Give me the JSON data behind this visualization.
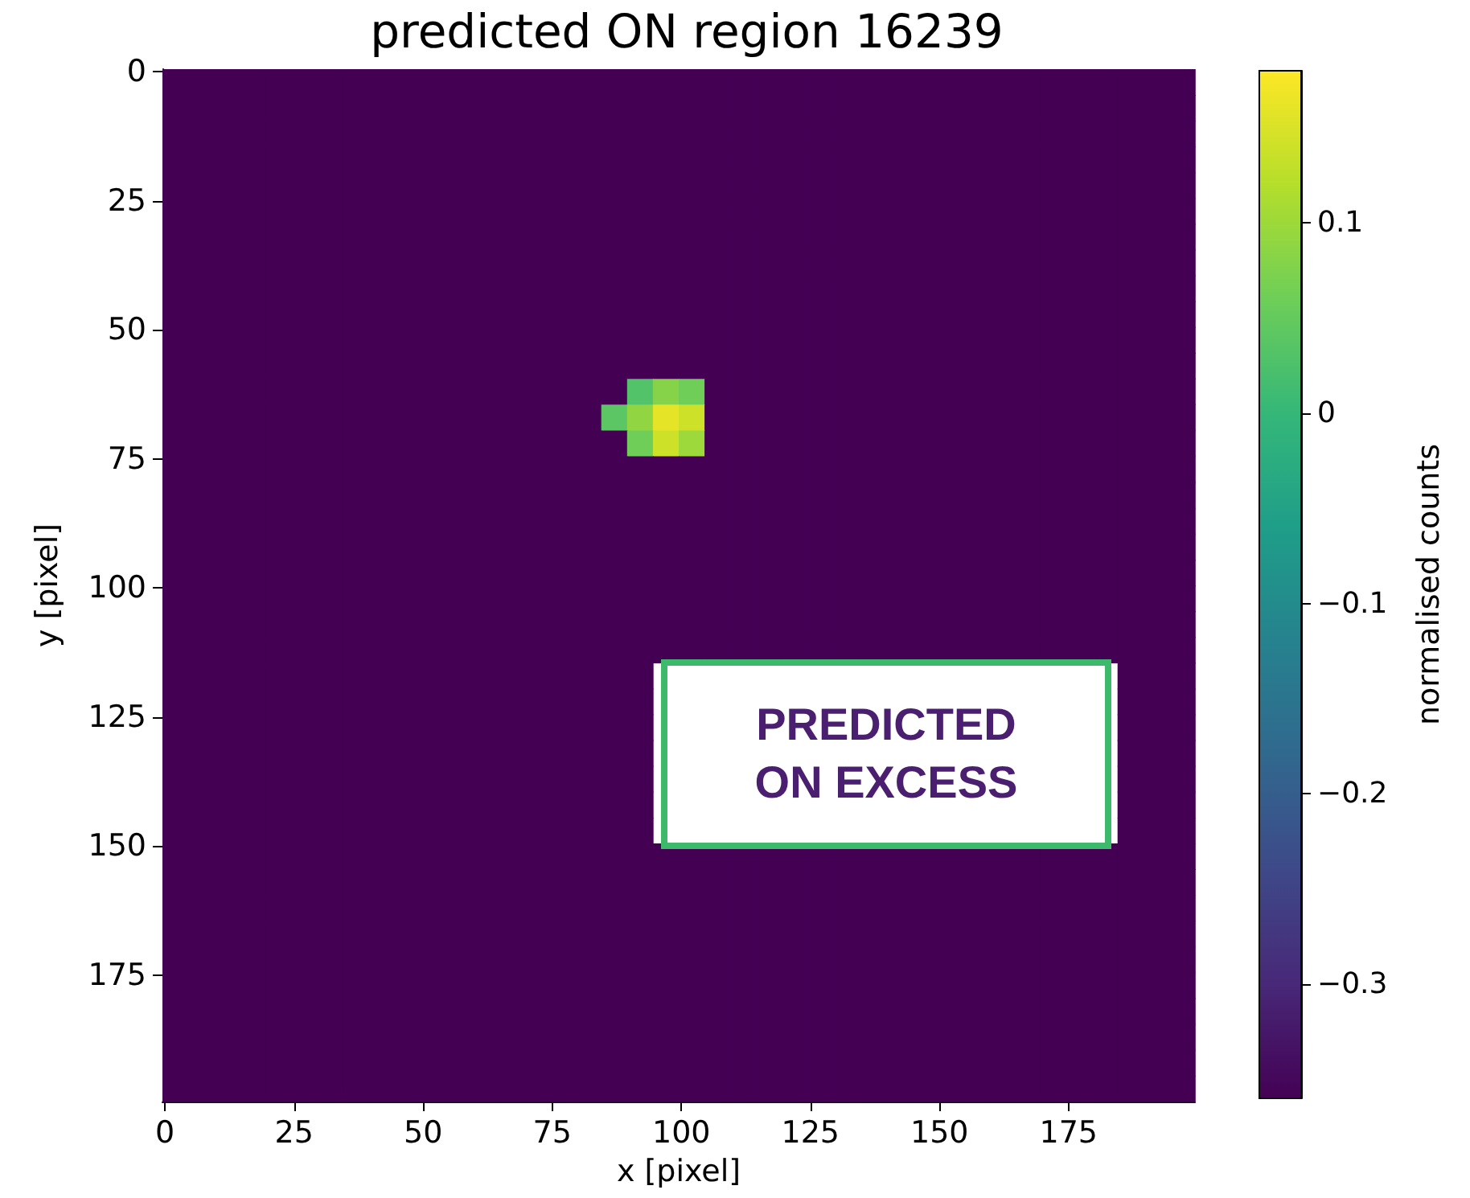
{
  "chart_data": {
    "type": "heatmap",
    "title": "predicted ON region 16239",
    "xlabel": "x [pixel]",
    "ylabel": "y [pixel]",
    "clabel": "normalised counts",
    "xlim": [
      -0.5,
      199.5
    ],
    "ylim": [
      199.5,
      -0.5
    ],
    "xticks": [
      0,
      25,
      50,
      75,
      100,
      125,
      150,
      175
    ],
    "yticks": [
      0,
      25,
      50,
      75,
      100,
      125,
      150,
      175
    ],
    "clim": [
      -0.36,
      0.18
    ],
    "cticks": [
      -0.3,
      -0.2,
      -0.1,
      0.0,
      0.1
    ],
    "annotations": [
      "PREDICTED ON EXCESS"
    ],
    "cells": [
      [
        -0.36,
        -0.36,
        -0.36,
        -0.36,
        -0.36,
        -0.36,
        -0.36,
        -0.36,
        -0.36,
        -0.36,
        -0.36,
        -0.36,
        -0.36,
        -0.36,
        -0.36,
        -0.36,
        -0.36,
        -0.36,
        -0.36,
        -0.36,
        -0.36,
        -0.36,
        -0.36,
        -0.36,
        -0.36,
        -0.36,
        -0.36,
        -0.36,
        -0.36,
        -0.36,
        -0.36,
        -0.36,
        -0.36,
        -0.36,
        -0.36,
        -0.36,
        -0.36,
        -0.36,
        -0.36,
        -0.36
      ],
      [
        -0.36,
        -0.36,
        -0.36,
        -0.36,
        -0.36,
        -0.36,
        -0.36,
        -0.36,
        -0.36,
        -0.36,
        -0.36,
        -0.36,
        -0.36,
        -0.36,
        -0.36,
        -0.36,
        -0.36,
        -0.36,
        -0.36,
        -0.36,
        -0.36,
        -0.36,
        -0.36,
        -0.36,
        -0.36,
        -0.36,
        -0.36,
        -0.36,
        -0.36,
        -0.36,
        -0.36,
        -0.36,
        -0.36,
        -0.36,
        -0.36,
        -0.36,
        -0.36,
        -0.36,
        -0.36,
        -0.36
      ],
      [
        -0.36,
        -0.36,
        -0.36,
        -0.36,
        -0.36,
        -0.36,
        -0.36,
        -0.36,
        -0.36,
        -0.36,
        -0.36,
        -0.36,
        -0.36,
        -0.36,
        -0.36,
        -0.36,
        -0.36,
        -0.36,
        -0.36,
        -0.36,
        -0.36,
        -0.36,
        -0.36,
        -0.36,
        -0.36,
        -0.36,
        -0.36,
        -0.36,
        -0.36,
        -0.36,
        -0.36,
        -0.36,
        -0.36,
        -0.36,
        -0.36,
        -0.36,
        -0.36,
        -0.36,
        -0.36,
        -0.36
      ],
      [
        -0.36,
        -0.36,
        -0.36,
        -0.36,
        -0.36,
        -0.36,
        -0.36,
        -0.36,
        -0.36,
        -0.36,
        -0.36,
        -0.36,
        -0.36,
        -0.36,
        -0.36,
        -0.36,
        -0.36,
        -0.36,
        -0.36,
        -0.36,
        -0.36,
        -0.36,
        -0.36,
        -0.36,
        -0.36,
        -0.36,
        -0.36,
        -0.36,
        -0.36,
        -0.36,
        -0.36,
        -0.36,
        -0.36,
        -0.36,
        -0.36,
        -0.36,
        -0.36,
        -0.36,
        -0.36,
        -0.36
      ],
      [
        -0.36,
        -0.36,
        -0.36,
        -0.36,
        -0.36,
        -0.36,
        -0.36,
        -0.36,
        -0.36,
        -0.36,
        -0.36,
        -0.36,
        -0.36,
        -0.36,
        -0.36,
        -0.36,
        -0.36,
        -0.36,
        -0.36,
        -0.36,
        -0.36,
        -0.36,
        -0.36,
        -0.36,
        -0.36,
        -0.36,
        -0.36,
        -0.36,
        -0.36,
        -0.36,
        -0.36,
        -0.36,
        -0.36,
        -0.36,
        -0.36,
        -0.36,
        -0.36,
        -0.36,
        -0.36,
        -0.36
      ],
      [
        -0.36,
        -0.36,
        -0.36,
        -0.36,
        -0.36,
        -0.36,
        -0.36,
        -0.36,
        -0.36,
        -0.36,
        -0.36,
        -0.36,
        -0.36,
        -0.36,
        -0.36,
        -0.36,
        -0.36,
        -0.36,
        -0.36,
        -0.36,
        -0.36,
        -0.36,
        -0.36,
        -0.36,
        -0.36,
        -0.36,
        -0.36,
        -0.36,
        -0.36,
        -0.36,
        -0.36,
        -0.36,
        -0.36,
        -0.36,
        -0.36,
        -0.36,
        -0.36,
        -0.36,
        -0.36,
        -0.36
      ],
      [
        -0.36,
        -0.36,
        -0.36,
        -0.36,
        -0.36,
        -0.36,
        -0.36,
        -0.36,
        -0.36,
        -0.36,
        -0.36,
        -0.36,
        -0.36,
        -0.36,
        -0.36,
        -0.36,
        -0.36,
        -0.36,
        -0.36,
        -0.36,
        -0.36,
        -0.36,
        -0.36,
        -0.36,
        -0.36,
        -0.36,
        -0.36,
        -0.36,
        -0.36,
        -0.36,
        -0.36,
        -0.36,
        -0.36,
        -0.36,
        -0.36,
        -0.36,
        -0.36,
        -0.36,
        -0.36,
        -0.36
      ],
      [
        -0.36,
        -0.36,
        -0.36,
        -0.36,
        -0.36,
        -0.36,
        -0.36,
        -0.36,
        -0.36,
        -0.36,
        -0.36,
        -0.36,
        -0.36,
        -0.36,
        -0.36,
        -0.36,
        -0.36,
        -0.36,
        -0.36,
        -0.36,
        -0.36,
        -0.36,
        -0.36,
        -0.36,
        -0.36,
        -0.36,
        -0.36,
        -0.36,
        -0.36,
        -0.36,
        -0.36,
        -0.36,
        -0.36,
        -0.36,
        -0.36,
        -0.36,
        -0.36,
        -0.36,
        -0.36,
        -0.36
      ],
      [
        -0.36,
        -0.36,
        -0.36,
        -0.36,
        -0.36,
        -0.36,
        -0.36,
        -0.36,
        -0.36,
        -0.36,
        -0.36,
        -0.36,
        -0.36,
        -0.36,
        -0.36,
        -0.36,
        -0.36,
        -0.36,
        -0.36,
        -0.36,
        -0.36,
        -0.36,
        -0.36,
        -0.36,
        -0.36,
        -0.36,
        -0.36,
        -0.36,
        -0.36,
        -0.36,
        -0.36,
        -0.36,
        -0.36,
        -0.36,
        -0.36,
        -0.36,
        -0.36,
        -0.36,
        -0.36,
        -0.36
      ],
      [
        -0.36,
        -0.36,
        -0.36,
        -0.36,
        -0.36,
        -0.36,
        -0.36,
        -0.36,
        -0.36,
        -0.36,
        -0.36,
        -0.36,
        -0.36,
        -0.36,
        -0.36,
        -0.36,
        -0.36,
        -0.36,
        -0.36,
        -0.36,
        -0.36,
        -0.36,
        -0.36,
        -0.36,
        -0.36,
        -0.36,
        -0.36,
        -0.36,
        -0.36,
        -0.36,
        -0.36,
        -0.36,
        -0.36,
        -0.36,
        -0.36,
        -0.36,
        -0.36,
        -0.36,
        -0.36,
        -0.36
      ],
      [
        -0.36,
        -0.36,
        -0.36,
        -0.36,
        -0.36,
        -0.36,
        -0.36,
        -0.36,
        -0.36,
        -0.36,
        -0.36,
        -0.36,
        -0.36,
        -0.36,
        -0.36,
        -0.36,
        -0.36,
        -0.36,
        -0.36,
        -0.36,
        -0.36,
        -0.36,
        -0.36,
        -0.36,
        -0.36,
        -0.36,
        -0.36,
        -0.36,
        -0.36,
        -0.36,
        -0.36,
        -0.36,
        -0.36,
        -0.36,
        -0.36,
        -0.36,
        -0.36,
        -0.36,
        -0.36,
        -0.36
      ],
      [
        -0.36,
        -0.36,
        -0.36,
        -0.36,
        -0.36,
        -0.36,
        -0.36,
        -0.36,
        -0.36,
        -0.36,
        -0.36,
        -0.36,
        -0.36,
        -0.36,
        -0.36,
        -0.36,
        -0.36,
        -0.36,
        -0.36,
        -0.36,
        -0.36,
        -0.36,
        -0.36,
        -0.36,
        -0.36,
        -0.36,
        -0.36,
        -0.36,
        -0.36,
        -0.36,
        -0.36,
        -0.36,
        -0.36,
        -0.36,
        -0.36,
        -0.36,
        -0.36,
        -0.36,
        -0.36,
        -0.36
      ],
      [
        -0.36,
        -0.36,
        -0.36,
        -0.36,
        -0.36,
        -0.36,
        -0.36,
        -0.36,
        -0.36,
        -0.36,
        -0.36,
        -0.36,
        -0.36,
        -0.36,
        -0.36,
        -0.36,
        -0.36,
        -0.36,
        0.03,
        0.08,
        0.06,
        -0.36,
        -0.36,
        -0.36,
        -0.36,
        -0.36,
        -0.36,
        -0.36,
        -0.36,
        -0.36,
        -0.36,
        -0.36,
        -0.36,
        -0.36,
        -0.36,
        -0.36,
        -0.36,
        -0.36,
        -0.36,
        -0.36
      ],
      [
        -0.36,
        -0.36,
        -0.36,
        -0.36,
        -0.36,
        -0.36,
        -0.36,
        -0.36,
        -0.36,
        -0.36,
        -0.36,
        -0.36,
        -0.36,
        -0.36,
        -0.36,
        -0.36,
        -0.36,
        0.04,
        0.09,
        0.16,
        0.14,
        -0.36,
        -0.36,
        -0.36,
        -0.36,
        -0.36,
        -0.36,
        -0.36,
        -0.36,
        -0.36,
        -0.36,
        -0.36,
        -0.36,
        -0.36,
        -0.36,
        -0.36,
        -0.36,
        -0.36,
        -0.36,
        -0.36
      ],
      [
        -0.36,
        -0.36,
        -0.36,
        -0.36,
        -0.36,
        -0.36,
        -0.36,
        -0.36,
        -0.36,
        -0.36,
        -0.36,
        -0.36,
        -0.36,
        -0.36,
        -0.36,
        -0.36,
        -0.36,
        -0.36,
        0.06,
        0.14,
        0.1,
        -0.36,
        -0.36,
        -0.36,
        -0.36,
        -0.36,
        -0.36,
        -0.36,
        -0.36,
        -0.36,
        -0.36,
        -0.36,
        -0.36,
        -0.36,
        -0.36,
        -0.36,
        -0.36,
        -0.36,
        -0.36,
        -0.36
      ],
      [
        -0.36,
        -0.36,
        -0.36,
        -0.36,
        -0.36,
        -0.36,
        -0.36,
        -0.36,
        -0.36,
        -0.36,
        -0.36,
        -0.36,
        -0.36,
        -0.36,
        -0.36,
        -0.36,
        -0.36,
        -0.36,
        -0.36,
        -0.36,
        -0.36,
        -0.36,
        -0.36,
        -0.36,
        -0.36,
        -0.36,
        -0.36,
        -0.36,
        -0.36,
        -0.36,
        -0.36,
        -0.36,
        -0.36,
        -0.36,
        -0.36,
        -0.36,
        -0.36,
        -0.36,
        -0.36,
        -0.36
      ],
      [
        -0.36,
        -0.36,
        -0.36,
        -0.36,
        -0.36,
        -0.36,
        -0.36,
        -0.36,
        -0.36,
        -0.36,
        -0.36,
        -0.36,
        -0.36,
        -0.36,
        -0.36,
        -0.36,
        -0.36,
        -0.36,
        -0.36,
        -0.36,
        -0.36,
        -0.36,
        -0.36,
        -0.36,
        -0.36,
        -0.36,
        -0.36,
        -0.36,
        -0.36,
        -0.36,
        -0.36,
        -0.36,
        -0.36,
        -0.36,
        -0.36,
        -0.36,
        -0.36,
        -0.36,
        -0.36,
        -0.36
      ],
      [
        -0.36,
        -0.36,
        -0.36,
        -0.36,
        -0.36,
        -0.36,
        -0.36,
        -0.36,
        -0.36,
        -0.36,
        -0.36,
        -0.36,
        -0.36,
        -0.36,
        -0.36,
        -0.36,
        -0.36,
        -0.36,
        -0.36,
        -0.36,
        -0.36,
        -0.36,
        -0.36,
        -0.36,
        -0.36,
        -0.36,
        -0.36,
        -0.36,
        -0.36,
        -0.36,
        -0.36,
        -0.36,
        -0.36,
        -0.36,
        -0.36,
        -0.36,
        -0.36,
        -0.36,
        -0.36,
        -0.36
      ],
      [
        -0.36,
        -0.36,
        -0.36,
        -0.36,
        -0.36,
        -0.36,
        -0.36,
        -0.36,
        -0.36,
        -0.36,
        -0.36,
        -0.36,
        -0.36,
        -0.36,
        -0.36,
        -0.36,
        -0.36,
        -0.36,
        -0.36,
        -0.36,
        -0.36,
        -0.36,
        -0.36,
        -0.36,
        -0.36,
        -0.36,
        -0.36,
        -0.36,
        -0.36,
        -0.36,
        -0.36,
        -0.36,
        -0.36,
        -0.36,
        -0.36,
        -0.36,
        -0.36,
        -0.36,
        -0.36,
        -0.36
      ],
      [
        -0.36,
        -0.36,
        -0.36,
        -0.36,
        -0.36,
        -0.36,
        -0.36,
        -0.36,
        -0.36,
        -0.36,
        -0.36,
        -0.36,
        -0.36,
        -0.36,
        -0.36,
        -0.36,
        -0.36,
        -0.36,
        -0.36,
        -0.36,
        -0.36,
        -0.36,
        -0.36,
        -0.36,
        -0.36,
        -0.36,
        -0.36,
        -0.36,
        -0.36,
        -0.36,
        -0.36,
        -0.36,
        -0.36,
        -0.36,
        -0.36,
        -0.36,
        -0.36,
        -0.36,
        -0.36,
        -0.36
      ],
      [
        -0.36,
        -0.36,
        -0.36,
        -0.36,
        -0.36,
        -0.36,
        -0.36,
        -0.36,
        -0.36,
        -0.36,
        -0.36,
        -0.36,
        -0.36,
        -0.36,
        -0.36,
        -0.36,
        -0.36,
        -0.36,
        -0.36,
        -0.36,
        -0.36,
        -0.36,
        -0.36,
        -0.36,
        -0.36,
        -0.36,
        -0.36,
        -0.36,
        -0.36,
        -0.36,
        -0.36,
        -0.36,
        -0.36,
        -0.36,
        -0.36,
        -0.36,
        -0.36,
        -0.36,
        -0.36,
        -0.36
      ],
      [
        -0.36,
        -0.36,
        -0.36,
        -0.36,
        -0.36,
        -0.36,
        -0.36,
        -0.36,
        -0.36,
        -0.36,
        -0.36,
        -0.36,
        -0.36,
        -0.36,
        -0.36,
        -0.36,
        -0.36,
        -0.36,
        -0.36,
        -0.36,
        -0.36,
        -0.36,
        -0.36,
        -0.36,
        -0.36,
        -0.36,
        -0.36,
        -0.36,
        -0.36,
        -0.36,
        -0.36,
        -0.36,
        -0.36,
        -0.36,
        -0.36,
        -0.36,
        -0.36,
        -0.36,
        -0.36,
        -0.36
      ],
      [
        -0.36,
        -0.36,
        -0.36,
        -0.36,
        -0.36,
        -0.36,
        -0.36,
        -0.36,
        -0.36,
        -0.36,
        -0.36,
        -0.36,
        -0.36,
        -0.36,
        -0.36,
        -0.36,
        -0.36,
        -0.36,
        -0.36,
        -0.36,
        -0.36,
        -0.36,
        -0.36,
        -0.36,
        -0.36,
        -0.36,
        -0.36,
        -0.36,
        -0.36,
        -0.36,
        -0.36,
        -0.36,
        -0.36,
        -0.36,
        -0.36,
        -0.36,
        -0.36,
        -0.36,
        -0.36,
        -0.36
      ],
      [
        -0.36,
        -0.36,
        -0.36,
        -0.36,
        -0.36,
        -0.36,
        -0.36,
        -0.36,
        -0.36,
        -0.36,
        -0.36,
        -0.36,
        -0.36,
        -0.36,
        -0.36,
        -0.36,
        -0.36,
        -0.36,
        -0.36,
        null,
        null,
        null,
        null,
        null,
        null,
        null,
        null,
        null,
        null,
        null,
        null,
        null,
        null,
        null,
        null,
        null,
        null,
        -0.36,
        -0.36,
        -0.36
      ],
      [
        -0.36,
        -0.36,
        -0.36,
        -0.36,
        -0.36,
        -0.36,
        -0.36,
        -0.36,
        -0.36,
        -0.36,
        -0.36,
        -0.36,
        -0.36,
        -0.36,
        -0.36,
        -0.36,
        -0.36,
        -0.36,
        -0.36,
        null,
        null,
        null,
        null,
        null,
        null,
        null,
        null,
        null,
        null,
        null,
        null,
        null,
        null,
        null,
        null,
        null,
        null,
        -0.36,
        -0.36,
        -0.36
      ],
      [
        -0.36,
        -0.36,
        -0.36,
        -0.36,
        -0.36,
        -0.36,
        -0.36,
        -0.36,
        -0.36,
        -0.36,
        -0.36,
        -0.36,
        -0.36,
        -0.36,
        -0.36,
        -0.36,
        -0.36,
        -0.36,
        -0.36,
        null,
        null,
        null,
        null,
        null,
        null,
        null,
        null,
        null,
        null,
        null,
        null,
        null,
        null,
        null,
        null,
        null,
        null,
        -0.36,
        -0.36,
        -0.36
      ],
      [
        -0.36,
        -0.36,
        -0.36,
        -0.36,
        -0.36,
        -0.36,
        -0.36,
        -0.36,
        -0.36,
        -0.36,
        -0.36,
        -0.36,
        -0.36,
        -0.36,
        -0.36,
        -0.36,
        -0.36,
        -0.36,
        -0.36,
        null,
        null,
        null,
        null,
        null,
        null,
        null,
        null,
        null,
        null,
        null,
        null,
        null,
        null,
        null,
        null,
        null,
        null,
        -0.36,
        -0.36,
        -0.36
      ],
      [
        -0.36,
        -0.36,
        -0.36,
        -0.36,
        -0.36,
        -0.36,
        -0.36,
        -0.36,
        -0.36,
        -0.36,
        -0.36,
        -0.36,
        -0.36,
        -0.36,
        -0.36,
        -0.36,
        -0.36,
        -0.36,
        -0.36,
        null,
        null,
        null,
        null,
        null,
        null,
        null,
        null,
        null,
        null,
        null,
        null,
        null,
        null,
        null,
        null,
        null,
        null,
        -0.36,
        -0.36,
        -0.36
      ],
      [
        -0.36,
        -0.36,
        -0.36,
        -0.36,
        -0.36,
        -0.36,
        -0.36,
        -0.36,
        -0.36,
        -0.36,
        -0.36,
        -0.36,
        -0.36,
        -0.36,
        -0.36,
        -0.36,
        -0.36,
        -0.36,
        -0.36,
        null,
        null,
        null,
        null,
        null,
        null,
        null,
        null,
        null,
        null,
        null,
        null,
        null,
        null,
        null,
        null,
        null,
        null,
        -0.36,
        -0.36,
        -0.36
      ],
      [
        -0.36,
        -0.36,
        -0.36,
        -0.36,
        -0.36,
        -0.36,
        -0.36,
        -0.36,
        -0.36,
        -0.36,
        -0.36,
        -0.36,
        -0.36,
        -0.36,
        -0.36,
        -0.36,
        -0.36,
        -0.36,
        -0.36,
        null,
        null,
        null,
        null,
        null,
        null,
        null,
        null,
        null,
        null,
        null,
        null,
        null,
        null,
        null,
        null,
        null,
        null,
        -0.36,
        -0.36,
        -0.36
      ],
      [
        -0.36,
        -0.36,
        -0.36,
        -0.36,
        -0.36,
        -0.36,
        -0.36,
        -0.36,
        -0.36,
        -0.36,
        -0.36,
        -0.36,
        -0.36,
        -0.36,
        -0.36,
        -0.36,
        -0.36,
        -0.36,
        -0.36,
        -0.36,
        -0.36,
        -0.36,
        -0.36,
        -0.36,
        -0.36,
        -0.36,
        -0.36,
        -0.36,
        -0.36,
        -0.36,
        -0.36,
        -0.36,
        -0.36,
        -0.36,
        -0.36,
        -0.36,
        -0.36,
        -0.36,
        -0.36,
        -0.36
      ],
      [
        -0.36,
        -0.36,
        -0.36,
        -0.36,
        -0.36,
        -0.36,
        -0.36,
        -0.36,
        -0.36,
        -0.36,
        -0.36,
        -0.36,
        -0.36,
        -0.36,
        -0.36,
        -0.36,
        -0.36,
        -0.36,
        -0.36,
        -0.36,
        -0.36,
        -0.36,
        -0.36,
        -0.36,
        -0.36,
        -0.36,
        -0.36,
        -0.36,
        -0.36,
        -0.36,
        -0.36,
        -0.36,
        -0.36,
        -0.36,
        -0.36,
        -0.36,
        -0.36,
        -0.36,
        -0.36,
        -0.36
      ],
      [
        -0.36,
        -0.36,
        -0.36,
        -0.36,
        -0.36,
        -0.36,
        -0.36,
        -0.36,
        -0.36,
        -0.36,
        -0.36,
        -0.36,
        -0.36,
        -0.36,
        -0.36,
        -0.36,
        -0.36,
        -0.36,
        -0.36,
        -0.36,
        -0.36,
        -0.36,
        -0.36,
        -0.36,
        -0.36,
        -0.36,
        -0.36,
        -0.36,
        -0.36,
        -0.36,
        -0.36,
        -0.36,
        -0.36,
        -0.36,
        -0.36,
        -0.36,
        -0.36,
        -0.36,
        -0.36,
        -0.36
      ],
      [
        -0.36,
        -0.36,
        -0.36,
        -0.36,
        -0.36,
        -0.36,
        -0.36,
        -0.36,
        -0.36,
        -0.36,
        -0.36,
        -0.36,
        -0.36,
        -0.36,
        -0.36,
        -0.36,
        -0.36,
        -0.36,
        -0.36,
        -0.36,
        -0.36,
        -0.36,
        -0.36,
        -0.36,
        -0.36,
        -0.36,
        -0.36,
        -0.36,
        -0.36,
        -0.36,
        -0.36,
        -0.36,
        -0.36,
        -0.36,
        -0.36,
        -0.36,
        -0.36,
        -0.36,
        -0.36,
        -0.36
      ],
      [
        -0.36,
        -0.36,
        -0.36,
        -0.36,
        -0.36,
        -0.36,
        -0.36,
        -0.36,
        -0.36,
        -0.36,
        -0.36,
        -0.36,
        -0.36,
        -0.36,
        -0.36,
        -0.36,
        -0.36,
        -0.36,
        -0.36,
        -0.36,
        -0.36,
        -0.36,
        -0.36,
        -0.36,
        -0.36,
        -0.36,
        -0.36,
        -0.36,
        -0.36,
        -0.36,
        -0.36,
        -0.36,
        -0.36,
        -0.36,
        -0.36,
        -0.36,
        -0.36,
        -0.36,
        -0.36,
        -0.36
      ],
      [
        -0.36,
        -0.36,
        -0.36,
        -0.36,
        -0.36,
        -0.36,
        -0.36,
        -0.36,
        -0.36,
        -0.36,
        -0.36,
        -0.36,
        -0.36,
        -0.36,
        -0.36,
        -0.36,
        -0.36,
        -0.36,
        -0.36,
        -0.36,
        -0.36,
        -0.36,
        -0.36,
        -0.36,
        -0.36,
        -0.36,
        -0.36,
        -0.36,
        -0.36,
        -0.36,
        -0.36,
        -0.36,
        -0.36,
        -0.36,
        -0.36,
        -0.36,
        -0.36,
        -0.36,
        -0.36,
        -0.36
      ],
      [
        -0.36,
        -0.36,
        -0.36,
        -0.36,
        -0.36,
        -0.36,
        -0.36,
        -0.36,
        -0.36,
        -0.36,
        -0.36,
        -0.36,
        -0.36,
        -0.36,
        -0.36,
        -0.36,
        -0.36,
        -0.36,
        -0.36,
        -0.36,
        -0.36,
        -0.36,
        -0.36,
        -0.36,
        -0.36,
        -0.36,
        -0.36,
        -0.36,
        -0.36,
        -0.36,
        -0.36,
        -0.36,
        -0.36,
        -0.36,
        -0.36,
        -0.36,
        -0.36,
        -0.36,
        -0.36,
        -0.36
      ],
      [
        -0.36,
        -0.36,
        -0.36,
        -0.36,
        -0.36,
        -0.36,
        -0.36,
        -0.36,
        -0.36,
        -0.36,
        -0.36,
        -0.36,
        -0.36,
        -0.36,
        -0.36,
        -0.36,
        -0.36,
        -0.36,
        -0.36,
        -0.36,
        -0.36,
        -0.36,
        -0.36,
        -0.36,
        -0.36,
        -0.36,
        -0.36,
        -0.36,
        -0.36,
        -0.36,
        -0.36,
        -0.36,
        -0.36,
        -0.36,
        -0.36,
        -0.36,
        -0.36,
        -0.36,
        -0.36,
        -0.36
      ],
      [
        -0.36,
        -0.36,
        -0.36,
        -0.36,
        -0.36,
        -0.36,
        -0.36,
        -0.36,
        -0.36,
        -0.36,
        -0.36,
        -0.36,
        -0.36,
        -0.36,
        -0.36,
        -0.36,
        -0.36,
        -0.36,
        -0.36,
        -0.36,
        -0.36,
        -0.36,
        -0.36,
        -0.36,
        -0.36,
        -0.36,
        -0.36,
        -0.36,
        -0.36,
        -0.36,
        -0.36,
        -0.36,
        -0.36,
        -0.36,
        -0.36,
        -0.36,
        -0.36,
        -0.36,
        -0.36,
        -0.36
      ],
      [
        -0.36,
        -0.36,
        -0.36,
        -0.36,
        -0.36,
        -0.36,
        -0.36,
        -0.36,
        -0.36,
        -0.36,
        -0.36,
        -0.36,
        -0.36,
        -0.36,
        -0.36,
        -0.36,
        -0.36,
        -0.36,
        -0.36,
        -0.36,
        -0.36,
        -0.36,
        -0.36,
        -0.36,
        -0.36,
        -0.36,
        -0.36,
        -0.36,
        -0.36,
        -0.36,
        -0.36,
        -0.36,
        -0.36,
        -0.36,
        -0.36,
        -0.36,
        -0.36,
        -0.36,
        -0.36,
        -0.36
      ]
    ]
  }
}
